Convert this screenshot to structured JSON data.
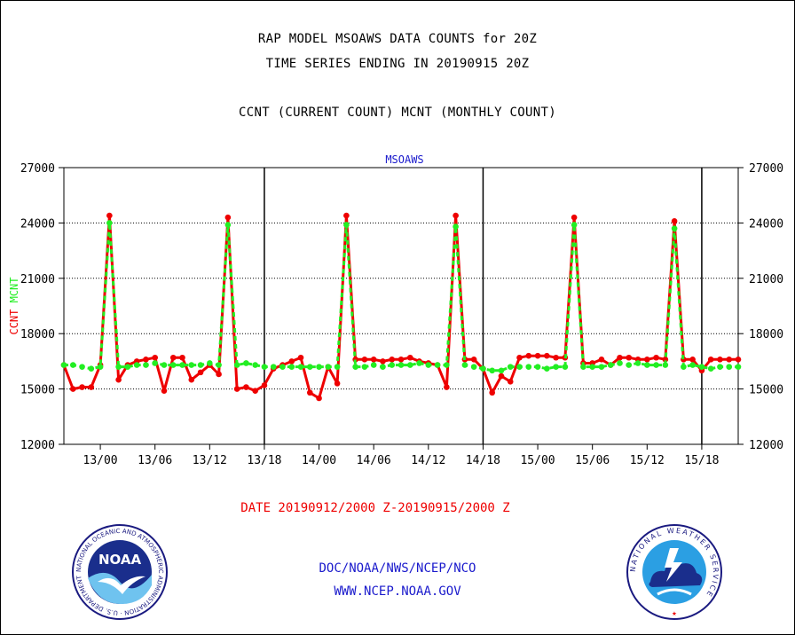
{
  "header": {
    "title_line1": "RAP MODEL MSOAWS DATA COUNTS for 20Z",
    "title_line2": "TIME SERIES ENDING IN 20190915 20Z",
    "subtitle": "CCNT (CURRENT COUNT) MCNT (MONTHLY COUNT)"
  },
  "footer": {
    "date_range": "DATE 20190912/2000 Z-20190915/2000 Z",
    "org": "DOC/NOAA/NWS/NCEP/NCO",
    "url": "WWW.NCEP.NOAA.GOV"
  },
  "logos": {
    "noaa_text": "NOAA",
    "noaa_ring_text": "NATIONAL OCEANIC AND ATMOSPHERIC ADMINISTRATION · U.S. DEPARTMENT OF COMMERCE ·",
    "nws_ring_text": "NATIONAL WEATHER SERVICE"
  },
  "colors": {
    "ccnt": "#ee0000",
    "mcnt": "#22ee22",
    "plot_title": "#1a1acc"
  },
  "chart_data": {
    "type": "line",
    "title": "MSOAWS",
    "xlabel": "",
    "ylabel_parts": [
      "CCNT",
      "MCNT"
    ],
    "ylim": [
      12000,
      27000
    ],
    "yticks": [
      12000,
      15000,
      18000,
      21000,
      24000,
      27000
    ],
    "xlim": [
      -4,
      70
    ],
    "x_unit": "hours since 13/00",
    "xticks": [
      {
        "x": 0,
        "label": "13/00"
      },
      {
        "x": 6,
        "label": "13/06"
      },
      {
        "x": 12,
        "label": "13/12"
      },
      {
        "x": 18,
        "label": "13/18"
      },
      {
        "x": 24,
        "label": "14/00"
      },
      {
        "x": 30,
        "label": "14/06"
      },
      {
        "x": 36,
        "label": "14/12"
      },
      {
        "x": 42,
        "label": "14/18"
      },
      {
        "x": 48,
        "label": "15/00"
      },
      {
        "x": 54,
        "label": "15/06"
      },
      {
        "x": 60,
        "label": "15/12"
      },
      {
        "x": 66,
        "label": "15/18"
      }
    ],
    "day_boundaries": [
      18,
      42,
      66
    ],
    "x_start": -4,
    "series": [
      {
        "name": "CCNT",
        "color": "#ee0000",
        "values": [
          16300,
          15000,
          15100,
          15100,
          16300,
          24400,
          15500,
          16300,
          16500,
          16600,
          16700,
          14900,
          16700,
          16700,
          15500,
          15900,
          16300,
          15800,
          24300,
          15000,
          15100,
          14900,
          15200,
          16100,
          16300,
          16500,
          16700,
          14800,
          14500,
          16200,
          15300,
          24400,
          16600,
          16600,
          16600,
          16500,
          16600,
          16600,
          16700,
          16500,
          16400,
          16300,
          15100,
          24400,
          16600,
          16600,
          16100,
          14800,
          15700,
          15400,
          16700,
          16800,
          16800,
          16800,
          16700,
          16700,
          24300,
          16400,
          16400,
          16600,
          16300,
          16700,
          16700,
          16600,
          16600,
          16700,
          16600,
          24100,
          16600,
          16600,
          16000,
          16600,
          16600,
          16600,
          16600
        ]
      },
      {
        "name": "MCNT",
        "color": "#22ee22",
        "values": [
          16300,
          16300,
          16200,
          16100,
          16200,
          24000,
          16200,
          16200,
          16300,
          16300,
          16400,
          16300,
          16300,
          16300,
          16300,
          16300,
          16400,
          16300,
          23900,
          16300,
          16400,
          16300,
          16200,
          16200,
          16200,
          16200,
          16200,
          16200,
          16200,
          16200,
          16200,
          23900,
          16200,
          16200,
          16300,
          16200,
          16300,
          16300,
          16300,
          16400,
          16300,
          16300,
          16300,
          23800,
          16300,
          16200,
          16100,
          16000,
          16000,
          16200,
          16200,
          16200,
          16200,
          16100,
          16200,
          16200,
          23900,
          16200,
          16200,
          16200,
          16300,
          16400,
          16300,
          16400,
          16300,
          16300,
          16300,
          23700,
          16200,
          16300,
          16200,
          16100,
          16200,
          16200,
          16200
        ]
      }
    ]
  }
}
